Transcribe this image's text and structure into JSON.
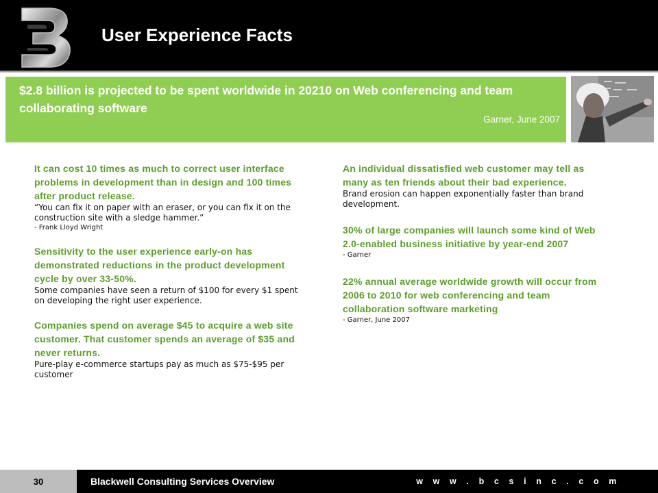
{
  "header": {
    "title": "User Experience Facts",
    "logo_icon": "bcs-logo-icon"
  },
  "quote": {
    "text": "$2.8 billion is projected to be spent worldwide in 20210 on Web conferencing and team collaborating software",
    "source": "Garner, June 2007",
    "photo_icon": "portrait-photo"
  },
  "left_column": [
    {
      "head": "It can cost 10 times as much to correct user interface problems in development than in design and 100 times after product release.",
      "body": "“You can fix it on paper with an eraser, or you can fix it on the construction site with a sledge hammer.”",
      "cite": "- Frank Lloyd Wright"
    },
    {
      "head": "Sensitivity to the user experience early-on has demonstrated reductions in the product development cycle by over 33-50%.",
      "body": "Some companies have seen a return of $100 for every $1 spent on developing the right user experience.",
      "cite": ""
    },
    {
      "head": "Companies spend on average $45 to acquire a web site customer. That customer spends an average of $35 and never returns.",
      "body": "Pure-play e-commerce startups pay as much as $75-$95 per customer",
      "cite": ""
    }
  ],
  "right_column": [
    {
      "head": "An individual dissatisfied web customer may tell as many as ten friends about their bad experience.",
      "body": "Brand erosion can happen exponentially faster than brand development.",
      "cite": ""
    },
    {
      "head": "30% of large companies will launch some kind of Web 2.0-enabled business initiative by year-end 2007",
      "body": "",
      "cite": "- Garner"
    },
    {
      "head": "22% annual average worldwide growth will occur from 2006 to 2010 for web conferencing and team collaboration software marketing",
      "body": "",
      "cite": "- Garner, June 2007"
    }
  ],
  "footer": {
    "page_number": "30",
    "title": "Blackwell Consulting Services Overview",
    "url": "w w w . b c s i n c . c o m"
  },
  "colors": {
    "accent_green": "#8fce52",
    "heading_green": "#5c9d2c",
    "bar_black": "#000000",
    "footer_gray": "#bdbdbd"
  }
}
